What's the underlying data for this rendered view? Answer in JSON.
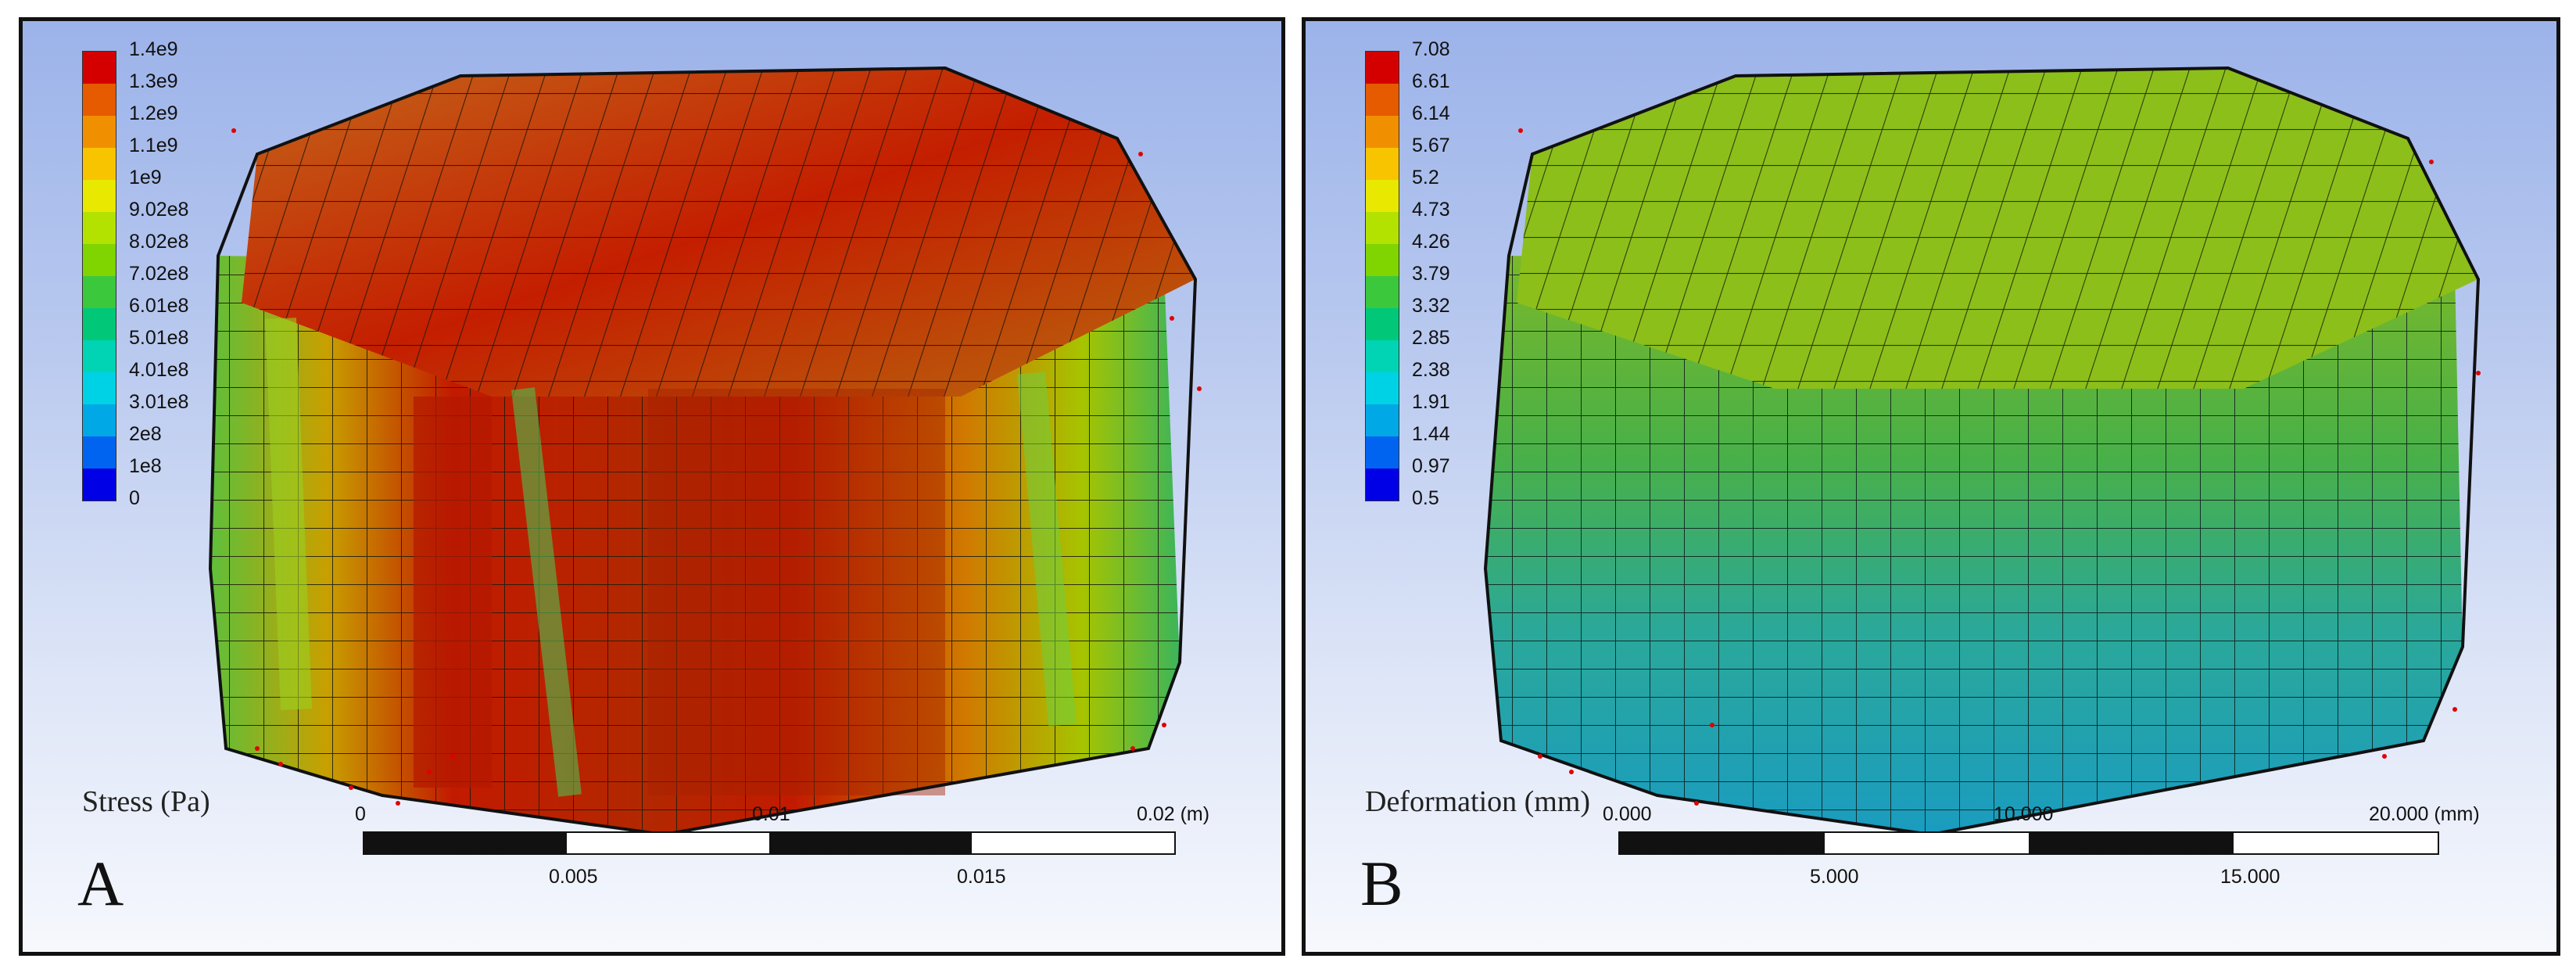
{
  "panel_a": {
    "letter": "A",
    "quantity_label": "Stress (Pa)",
    "legend": [
      "1.4e9",
      "1.3e9",
      "1.2e9",
      "1.1e9",
      "1e9",
      "9.02e8",
      "8.02e8",
      "7.02e8",
      "6.01e8",
      "5.01e8",
      "4.01e8",
      "3.01e8",
      "2e8",
      "1e8",
      "0"
    ],
    "scale": {
      "top": [
        "0",
        "0.01",
        "0.02 (m)"
      ],
      "bottom": [
        "0.005",
        "0.015"
      ]
    }
  },
  "panel_b": {
    "letter": "B",
    "quantity_label": "Deformation (mm)",
    "legend": [
      "7.08",
      "6.61",
      "6.14",
      "5.67",
      "5.2",
      "4.73",
      "4.26",
      "3.79",
      "3.32",
      "2.85",
      "2.38",
      "1.91",
      "1.44",
      "0.97",
      "0.5"
    ],
    "scale": {
      "top": [
        "0.000",
        "10.000",
        "20.000 (mm)"
      ],
      "bottom": [
        "5.000",
        "15.000"
      ]
    }
  },
  "colors": {
    "legend_bands": [
      "#d40000",
      "#e65a00",
      "#f09000",
      "#f8c400",
      "#e8e800",
      "#b4e200",
      "#80d400",
      "#3cc83c",
      "#00c878",
      "#00d4b4",
      "#00d2e6",
      "#00a8e6",
      "#0064f0",
      "#0000e6"
    ],
    "stress_side": "#c21a00",
    "stress_top": "#b85a10",
    "deform_top": "#8cbf1a",
    "deform_side": "#2fa0a8",
    "border": "#111111"
  }
}
